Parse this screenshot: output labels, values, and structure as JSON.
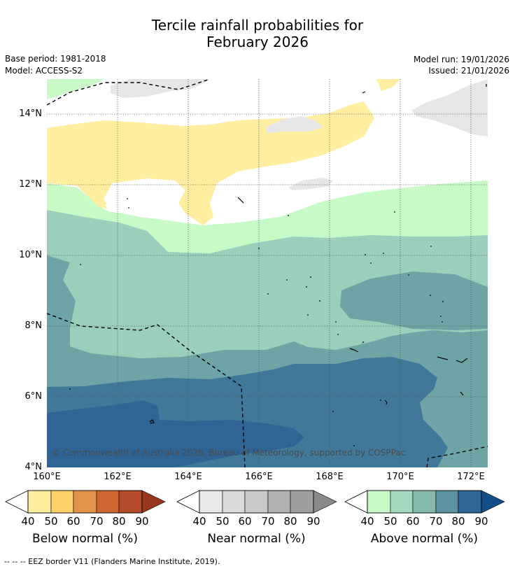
{
  "title_line1": "Tercile rainfall probabilities for",
  "title_line2": "February 2026",
  "base_period": "Base period: 1981-2018",
  "model": "Model: ACCESS-S2",
  "model_run": "Model run: 19/01/2026",
  "issued": "Issued: 21/01/2026",
  "y_axis_labels": [
    "14°N",
    "12°N",
    "10°N",
    "8°N",
    "6°N",
    "4°N"
  ],
  "x_axis_labels": [
    "160°E",
    "162°E",
    "164°E",
    "166°E",
    "168°E",
    "170°E",
    "172°E"
  ],
  "copyright": "© Commonwealth of Australia 2026, Bureau of Meteorology, supported by COSPPac",
  "colorbars": {
    "below": {
      "title": "Below normal (%)",
      "ticks": [
        "40",
        "50",
        "60",
        "70",
        "80",
        "90"
      ],
      "colors": [
        "#ffeda0",
        "#fed068",
        "#e2954a",
        "#cf6533",
        "#b44a28",
        "#98361e"
      ]
    },
    "near": {
      "title": "Near normal (%)",
      "ticks": [
        "40",
        "50",
        "60",
        "70",
        "80",
        "90"
      ],
      "colors": [
        "#e8e8e8",
        "#dadada",
        "#c8c8c8",
        "#b2b2b2",
        "#9f9f9f",
        "#8a8a8a"
      ]
    },
    "above": {
      "title": "Above normal (%)",
      "ticks": [
        "40",
        "50",
        "60",
        "70",
        "80",
        "90"
      ],
      "colors": [
        "#c8fac8",
        "#a4d9bf",
        "#84b9ae",
        "#5b93a3",
        "#2f6497",
        "#124f88"
      ]
    }
  },
  "footnote": "-- -- -- EEZ border V11 (Flanders Marine Institute, 2019).",
  "map_colors": {
    "above40": "#c8fac8",
    "above50": "#9ccfbb",
    "above60": "#6ea4a6",
    "above70": "#3f7898",
    "above80": "#2f6497",
    "below40": "#ffeda0",
    "near40": "#e6e6e6"
  }
}
